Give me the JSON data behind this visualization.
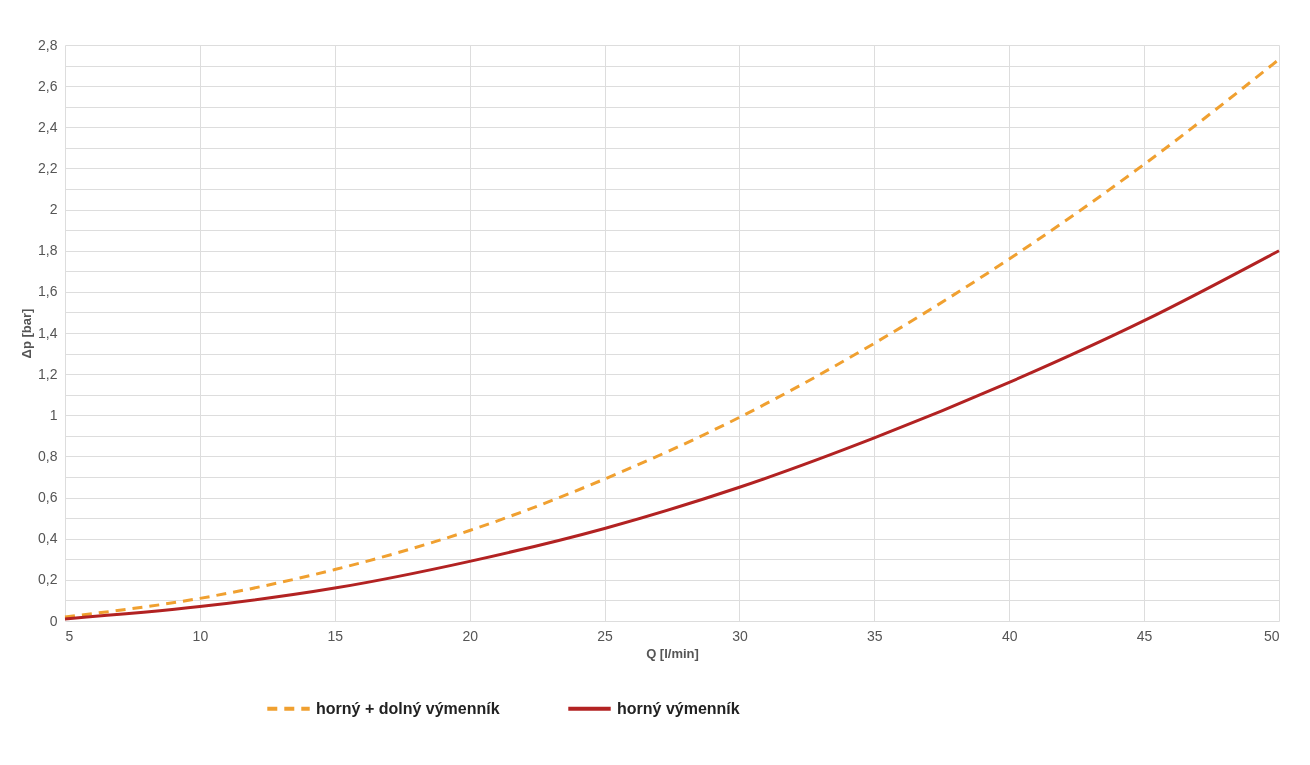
{
  "chart_data": {
    "type": "line",
    "xlabel": "Q [l/min]",
    "ylabel": "Δp [bar]",
    "x": [
      5,
      10,
      15,
      20,
      25,
      30,
      35,
      40,
      45,
      50
    ],
    "series": [
      {
        "name": "horný + dolný výmenník",
        "color": "#f0a030",
        "line_style": "dashed",
        "values": [
          0.02,
          0.11,
          0.25,
          0.44,
          0.69,
          0.99,
          1.35,
          1.76,
          2.22,
          2.73
        ]
      },
      {
        "name": "horný výmenník",
        "color": "#b22222",
        "line_style": "solid",
        "values": [
          0.01,
          0.07,
          0.16,
          0.29,
          0.45,
          0.65,
          0.89,
          1.16,
          1.46,
          1.8
        ]
      }
    ],
    "xlim": [
      5,
      50
    ],
    "xticks": [
      5,
      10,
      15,
      20,
      25,
      30,
      35,
      40,
      45,
      50
    ],
    "ylim": [
      0,
      2.8
    ],
    "yticks": [
      0,
      {
        "value": 0.1,
        "label": null
      },
      {
        "value": 0.2,
        "label": "0,2"
      },
      {
        "value": 0.3,
        "label": null
      },
      {
        "value": 0.4,
        "label": "0,4"
      },
      {
        "value": 0.5,
        "label": null
      },
      {
        "value": 0.6,
        "label": "0,6"
      },
      {
        "value": 0.7,
        "label": null
      },
      {
        "value": 0.8,
        "label": "0,8"
      },
      {
        "value": 0.9,
        "label": null
      },
      1,
      {
        "value": 1.1,
        "label": null
      },
      {
        "value": 1.2,
        "label": "1,2"
      },
      {
        "value": 1.3,
        "label": null
      },
      {
        "value": 1.4,
        "label": "1,4"
      },
      {
        "value": 1.5,
        "label": null
      },
      {
        "value": 1.6,
        "label": "1,6"
      },
      {
        "value": 1.7,
        "label": null
      },
      {
        "value": 1.8,
        "label": "1,8"
      },
      {
        "value": 1.9,
        "label": null
      },
      2,
      {
        "value": 2.1,
        "label": null
      },
      {
        "value": 2.2,
        "label": "2,2"
      },
      {
        "value": 2.3,
        "label": null
      },
      {
        "value": 2.4,
        "label": "2,4"
      },
      {
        "value": 2.5,
        "label": null
      },
      {
        "value": 2.6,
        "label": "2,6"
      },
      {
        "value": 2.7,
        "label": null
      },
      {
        "value": 2.8,
        "label": "2,8"
      }
    ],
    "grid": true,
    "legend": "bottom",
    "marker": "none"
  }
}
